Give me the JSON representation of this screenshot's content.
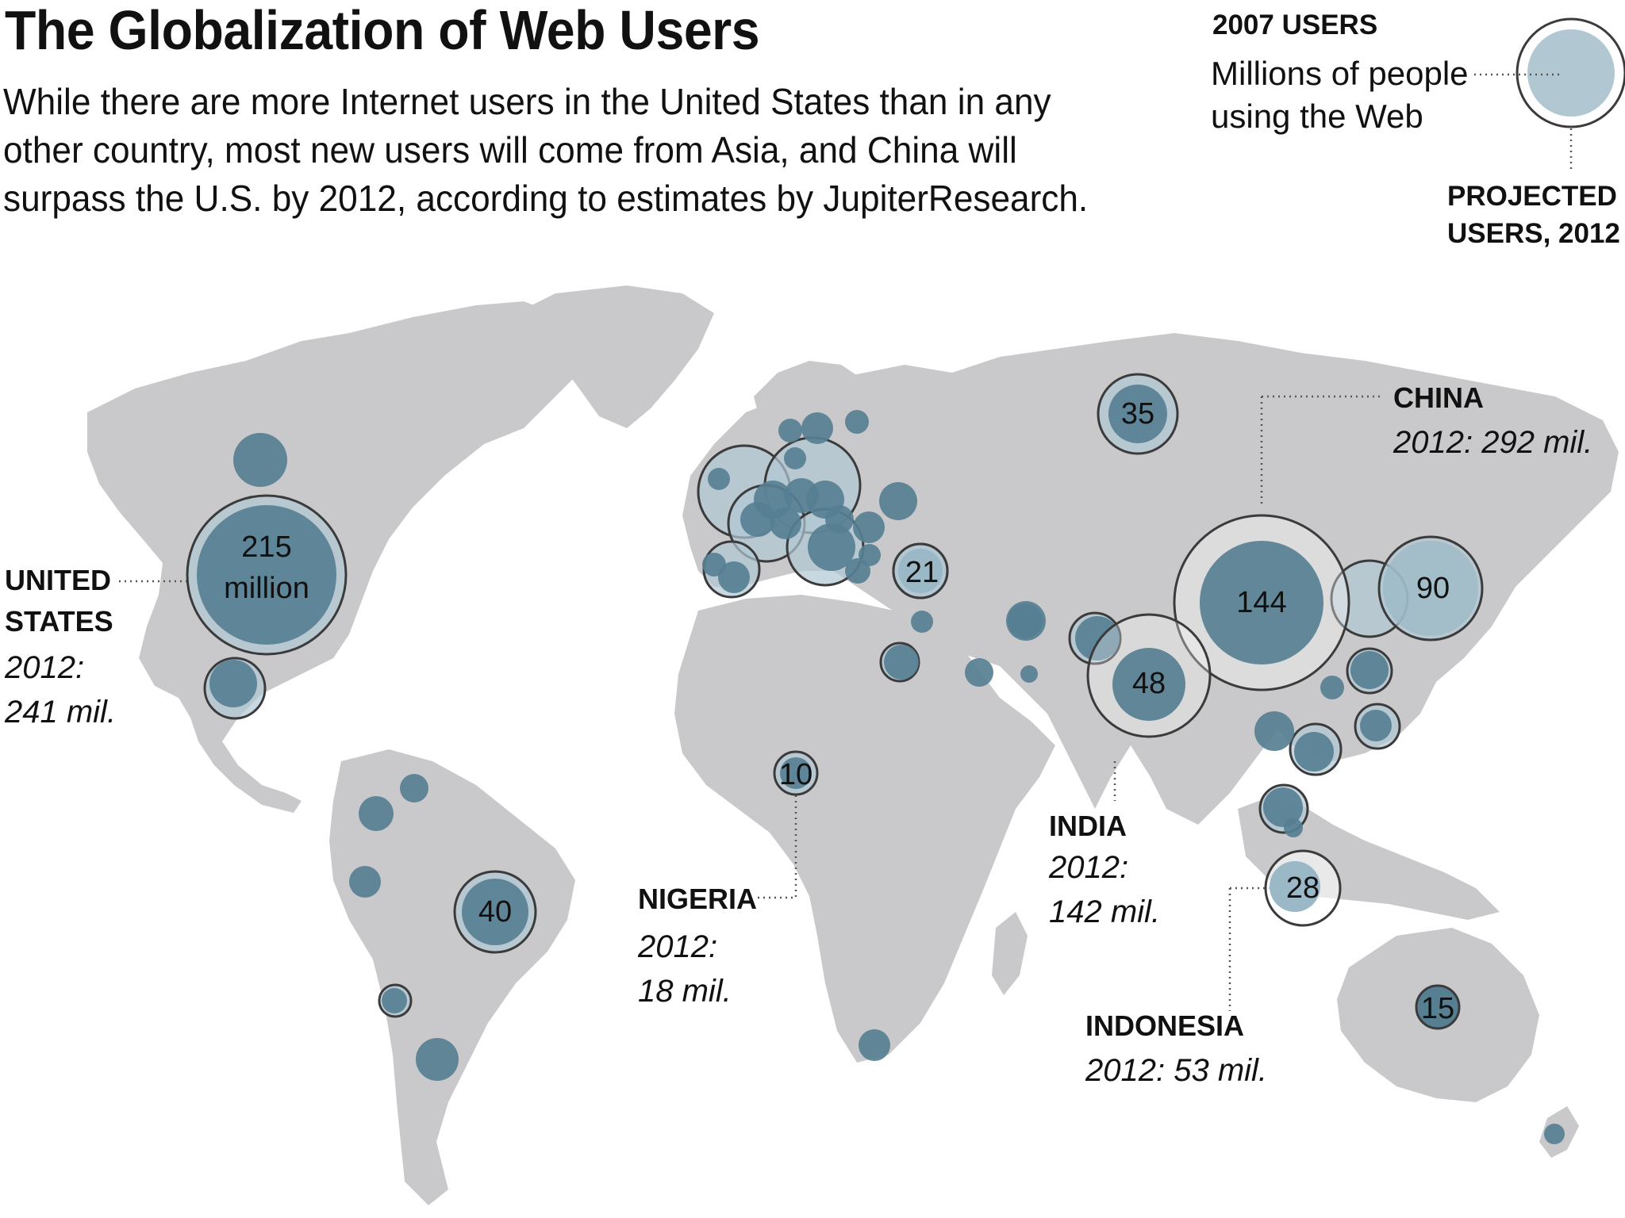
{
  "title": "The Globalization of Web Users",
  "subtitle": "While there are more Internet users in the United States than in any other country, most new users will come from Asia, and China will surpass the U.S. by 2012, according to estimates by JupiterResearch.",
  "legend": {
    "heading": "2007 USERS",
    "description_lines": [
      "Millions of people",
      "using the Web"
    ],
    "projected_lines": [
      "PROJECTED",
      "USERS, 2012"
    ]
  },
  "callouts": {
    "us": {
      "name_lines": [
        "UNITED",
        "STATES"
      ],
      "value_lines": [
        "2012:",
        "241 mil."
      ]
    },
    "china": {
      "name_lines": [
        "CHINA"
      ],
      "value_lines": [
        "2012: 292 mil."
      ]
    },
    "india": {
      "name_lines": [
        "INDIA"
      ],
      "value_lines": [
        "2012:",
        "142 mil."
      ]
    },
    "nigeria": {
      "name_lines": [
        "NIGERIA"
      ],
      "value_lines": [
        "2012:",
        "18 mil."
      ]
    },
    "indonesia": {
      "name_lines": [
        "INDONESIA"
      ],
      "value_lines": [
        "2012: 53 mil."
      ]
    }
  },
  "map_data": {
    "type": "proportional-symbol map",
    "colors": {
      "land": "#c9c9cb",
      "users_2007": "#577f92",
      "projected_2012": "#b1c8d3",
      "ring": "#3b3b3b"
    },
    "labeled_bubbles": [
      {
        "id": "us",
        "label_lines": [
          "215",
          "million"
        ],
        "users_2007": 215,
        "projected_2012": 241
      },
      {
        "id": "china",
        "label_lines": [
          "144"
        ],
        "users_2007": 144,
        "projected_2012": 292
      },
      {
        "id": "japan",
        "label_lines": [
          "90"
        ],
        "users_2007": 90
      },
      {
        "id": "india",
        "label_lines": [
          "48"
        ],
        "users_2007": 48,
        "projected_2012": 142
      },
      {
        "id": "brazil",
        "label_lines": [
          "40"
        ],
        "users_2007": 40
      },
      {
        "id": "russia",
        "label_lines": [
          "35"
        ],
        "users_2007": 35
      },
      {
        "id": "indonesia",
        "label_lines": [
          "28"
        ],
        "users_2007": 28,
        "projected_2012": 53
      },
      {
        "id": "turkey",
        "label_lines": [
          "21"
        ],
        "users_2007": 21
      },
      {
        "id": "australia",
        "label_lines": [
          "15"
        ],
        "users_2007": 15
      },
      {
        "id": "nigeria",
        "label_lines": [
          "10"
        ],
        "users_2007": 10,
        "projected_2012": 18
      }
    ],
    "unlabeled_bubble_count": 42
  }
}
